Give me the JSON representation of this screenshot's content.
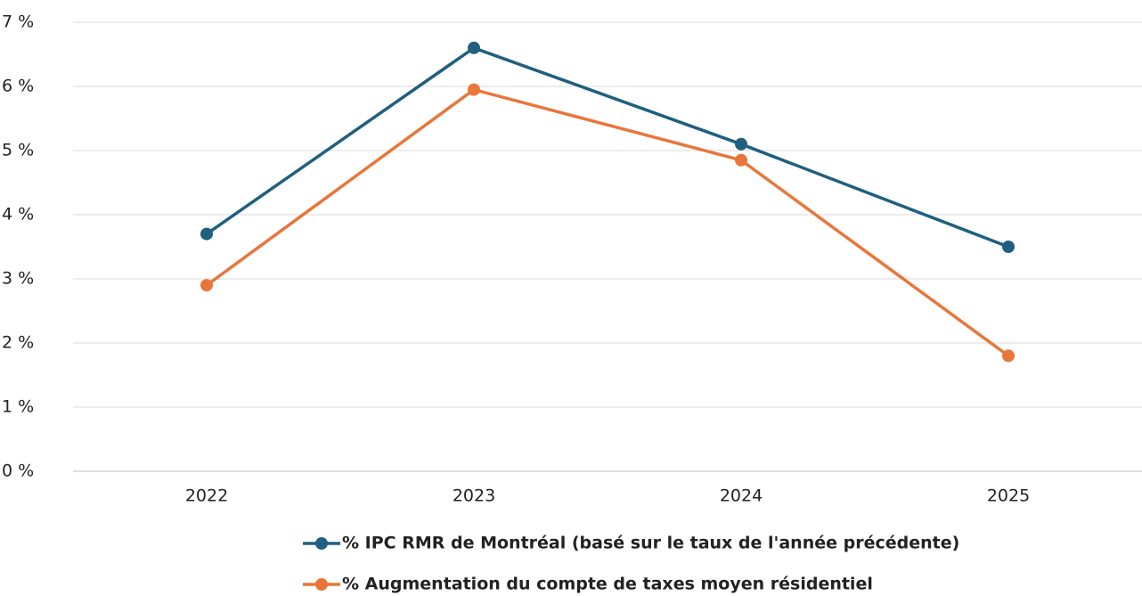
{
  "chart_data": {
    "type": "line",
    "categories": [
      "2022",
      "2023",
      "2024",
      "2025"
    ],
    "series": [
      {
        "name": "% IPC  RMR de Montréal (basé sur le taux de l'année précédente)",
        "color": "#1f5f7f",
        "values": [
          3.7,
          6.6,
          5.1,
          3.5
        ]
      },
      {
        "name": "% Augmentation du compte de taxes moyen résidentiel",
        "color": "#e8763a",
        "values": [
          2.9,
          5.95,
          4.85,
          1.8
        ]
      }
    ],
    "ylim": [
      0,
      7
    ],
    "yticks": [
      {
        "value": 0,
        "label": "0 %"
      },
      {
        "value": 1,
        "label": "1 %"
      },
      {
        "value": 2,
        "label": "2 %"
      },
      {
        "value": 3,
        "label": "3 %"
      },
      {
        "value": 4,
        "label": "4 %"
      },
      {
        "value": 5,
        "label": "5 %"
      },
      {
        "value": 6,
        "label": "6 %"
      },
      {
        "value": 7,
        "label": "7 %"
      }
    ],
    "grid": true
  }
}
